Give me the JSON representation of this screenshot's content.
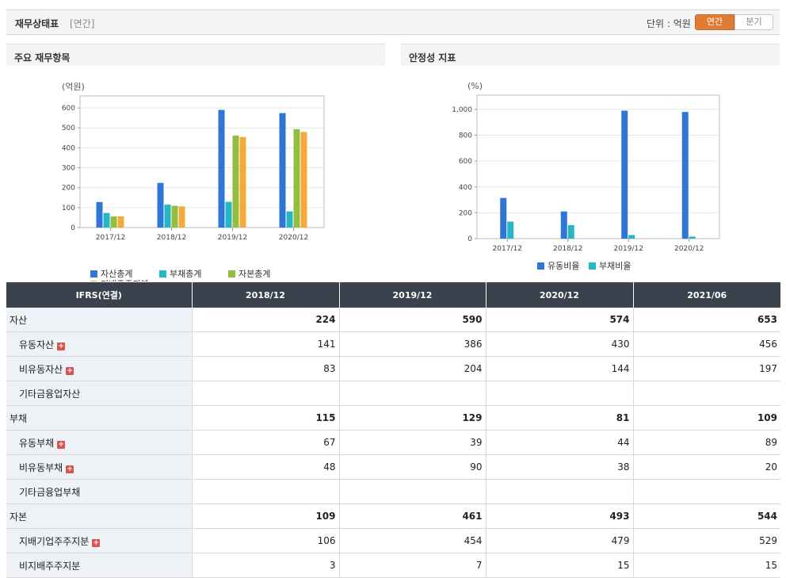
{
  "header": {
    "title": "재무상태표",
    "subtitle": "[연간]",
    "unit_label": "단위 : 억원",
    "btn_annual": "연간",
    "btn_quarter": "분기"
  },
  "panels": {
    "left_title": "주요 재무항목",
    "right_title": "안정성 지표"
  },
  "chart_data": [
    {
      "type": "bar",
      "categories": [
        "2017/12",
        "2018/12",
        "2019/12",
        "2020/12"
      ],
      "unit": "(억원)",
      "ylim": [
        0,
        660
      ],
      "yticks": [
        "0",
        "100",
        "200",
        "300",
        "400",
        "500",
        "600"
      ],
      "series": [
        {
          "name": "자산총계",
          "color": "#2f77d6",
          "values": [
            128,
            224,
            590,
            574
          ]
        },
        {
          "name": "부채총계",
          "color": "#27b6c4",
          "values": [
            73,
            115,
            129,
            81
          ]
        },
        {
          "name": "자본총계",
          "color": "#92bd3f",
          "values": [
            56,
            109,
            461,
            493
          ]
        },
        {
          "name": "지배주주지분",
          "color": "#f4a93a",
          "values": [
            56,
            106,
            454,
            479
          ]
        }
      ],
      "legend_position": "bottom"
    },
    {
      "type": "bar",
      "categories": [
        "2017/12",
        "2018/12",
        "2019/12",
        "2020/12"
      ],
      "unit": "(%)",
      "ylim": [
        0,
        1110
      ],
      "yticks": [
        "0",
        "200",
        "400",
        "600",
        "800",
        "1,000"
      ],
      "series": [
        {
          "name": "유동비율",
          "color": "#2f77d6",
          "values": [
            315,
            210,
            990,
            980
          ]
        },
        {
          "name": "부채비율",
          "color": "#27b6c4",
          "values": [
            132,
            105,
            28,
            16
          ]
        }
      ],
      "legend_position": "bottom"
    }
  ],
  "table": {
    "header": [
      "IFRS(연결)",
      "2018/12",
      "2019/12",
      "2020/12",
      "2021/06"
    ],
    "rows": [
      {
        "label": "자산",
        "values": [
          "224",
          "590",
          "574",
          "653"
        ],
        "level": 0,
        "expand": false
      },
      {
        "label": "유동자산",
        "values": [
          "141",
          "386",
          "430",
          "456"
        ],
        "level": 1,
        "expand": true
      },
      {
        "label": "비유동자산",
        "values": [
          "83",
          "204",
          "144",
          "197"
        ],
        "level": 1,
        "expand": true
      },
      {
        "label": "기타금융업자산",
        "values": [
          "",
          "",
          "",
          ""
        ],
        "level": 1,
        "expand": false
      },
      {
        "label": "부채",
        "values": [
          "115",
          "129",
          "81",
          "109"
        ],
        "level": 0,
        "expand": false
      },
      {
        "label": "유동부채",
        "values": [
          "67",
          "39",
          "44",
          "89"
        ],
        "level": 1,
        "expand": true
      },
      {
        "label": "비유동부채",
        "values": [
          "48",
          "90",
          "38",
          "20"
        ],
        "level": 1,
        "expand": true
      },
      {
        "label": "기타금융업부채",
        "values": [
          "",
          "",
          "",
          ""
        ],
        "level": 1,
        "expand": false
      },
      {
        "label": "자본",
        "values": [
          "109",
          "461",
          "493",
          "544"
        ],
        "level": 0,
        "expand": false
      },
      {
        "label": "지배기업주주지분",
        "values": [
          "106",
          "454",
          "479",
          "529"
        ],
        "level": 1,
        "expand": true
      },
      {
        "label": "비지배주주지분",
        "values": [
          "3",
          "7",
          "15",
          "15"
        ],
        "level": 1,
        "expand": false
      }
    ],
    "expand_glyph": "+"
  }
}
